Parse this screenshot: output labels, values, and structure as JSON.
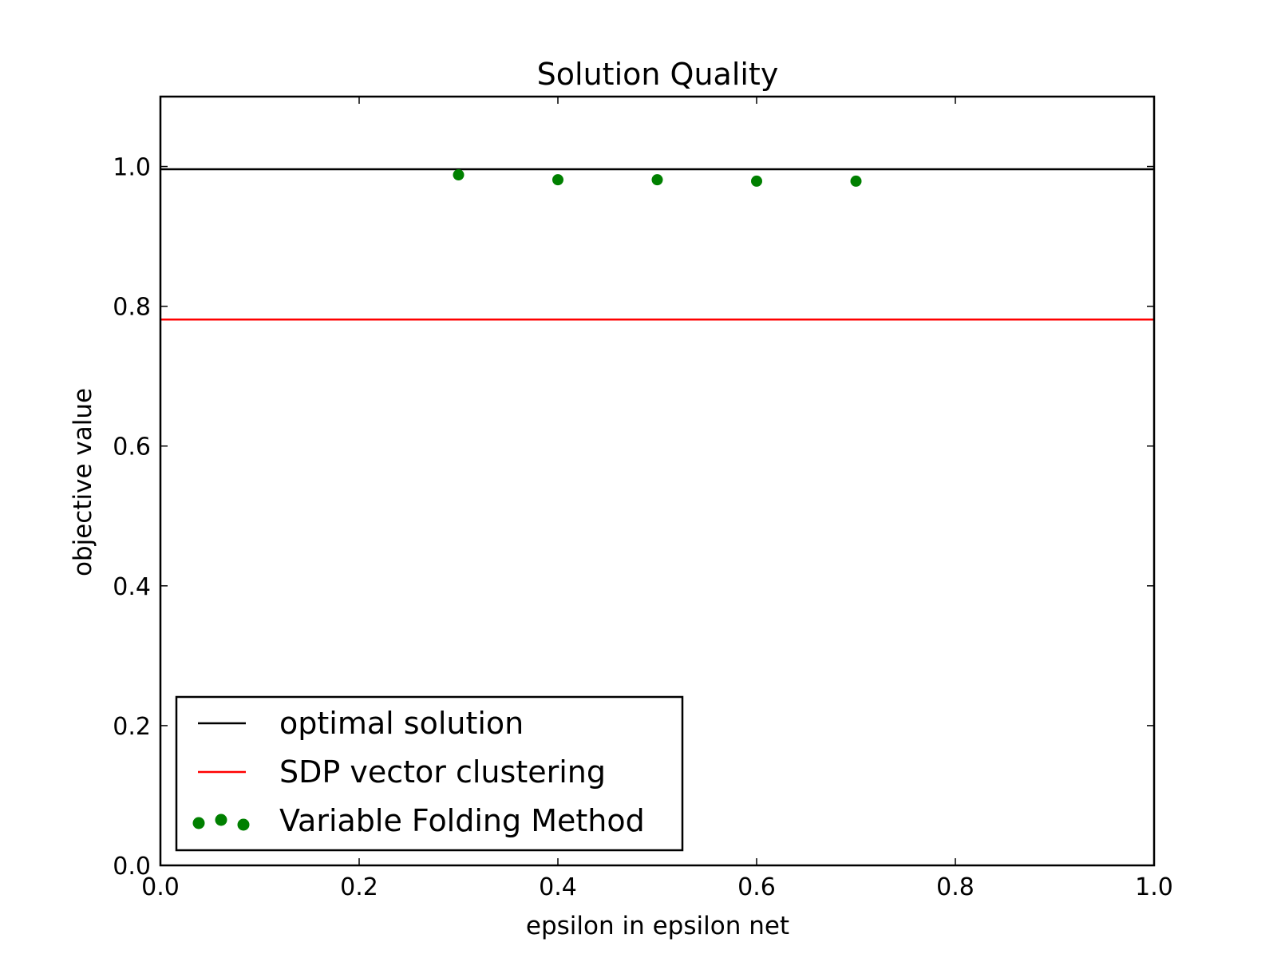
{
  "chart_data": {
    "type": "line",
    "title": "Solution Quality",
    "xlabel": "epsilon in epsilon net",
    "ylabel": "objective value",
    "xlim": [
      0.0,
      1.0
    ],
    "ylim": [
      0.0,
      1.1
    ],
    "xticks": [
      "0.0",
      "0.2",
      "0.4",
      "0.6",
      "0.8",
      "1.0"
    ],
    "yticks": [
      "0.0",
      "0.2",
      "0.4",
      "0.6",
      "0.8",
      "1.0"
    ],
    "xtick_values": [
      0.0,
      0.2,
      0.4,
      0.6,
      0.8,
      1.0
    ],
    "ytick_values": [
      0.0,
      0.2,
      0.4,
      0.6,
      0.8,
      1.0
    ],
    "grid": false,
    "legend_position": "lower-left",
    "series": [
      {
        "name": "optimal solution",
        "kind": "hline",
        "y": 0.996,
        "color": "#000000"
      },
      {
        "name": "SDP vector clustering",
        "kind": "hline",
        "y": 0.781,
        "color": "#ff0000"
      },
      {
        "name": "Variable Folding Method",
        "kind": "scatter",
        "color": "#008000",
        "x": [
          0.3,
          0.4,
          0.5,
          0.6,
          0.7
        ],
        "y": [
          0.988,
          0.981,
          0.981,
          0.979,
          0.979
        ]
      }
    ]
  }
}
